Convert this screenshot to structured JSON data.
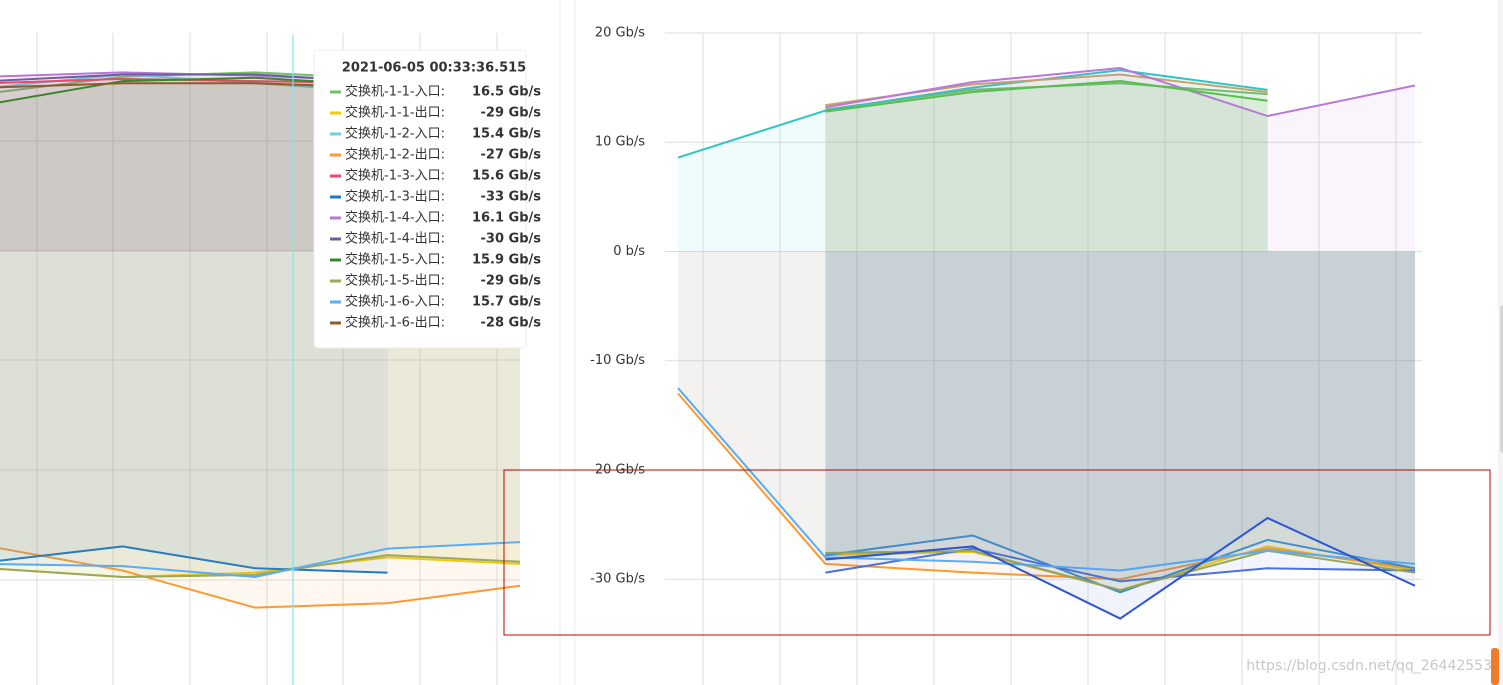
{
  "chart_data": [
    {
      "type": "line",
      "categories": [
        null,
        null,
        null,
        null,
        null
      ],
      "ylim": [
        -39.5,
        20
      ],
      "series": [
        {
          "name": "交换机-1-1-入口:",
          "color": "#73bf69",
          "values": [
            14.5,
            16.0,
            16.4,
            15.8,
            null
          ]
        },
        {
          "name": "交换机-1-1-出口:",
          "color": "#f2cc0c",
          "values": [
            -29.0,
            -29.8,
            -29.4,
            -28.0,
            -28.6
          ]
        },
        {
          "name": "交换机-1-2-入口:",
          "color": "#6ed0e0",
          "values": [
            15.0,
            16.2,
            15.4,
            14.6,
            null
          ]
        },
        {
          "name": "交换机-1-2-出口:",
          "color": "#ff9830",
          "values": [
            -27.0,
            -29.2,
            -32.6,
            -32.2,
            -30.6
          ]
        },
        {
          "name": "交换机-1-3-入口:",
          "color": "#f2495c",
          "values": [
            15.4,
            15.8,
            15.6,
            15.4,
            null
          ]
        },
        {
          "name": "交换机-1-3-出口:",
          "color": "#1f78c1",
          "values": [
            -28.4,
            -27.0,
            -29.0,
            -29.4,
            null
          ]
        },
        {
          "name": "交换机-1-4-入口:",
          "color": "#b877d9",
          "values": [
            16.0,
            16.4,
            16.1,
            15.6,
            null
          ]
        },
        {
          "name": "交换机-1-4-出口:",
          "color": "#705da0",
          "values": [
            15.6,
            16.2,
            16.2,
            15.5,
            null
          ]
        },
        {
          "name": "交换机-1-5-入口:",
          "color": "#37872d",
          "values": [
            13.5,
            15.6,
            15.9,
            15.2,
            null
          ]
        },
        {
          "name": "交换机-1-5-出口:",
          "color": "#9aa85a",
          "values": [
            -29.0,
            -29.8,
            -29.6,
            -27.8,
            -28.4
          ]
        },
        {
          "name": "交换机-1-6-入口:",
          "color": "#5aacf5",
          "values": [
            -28.6,
            -28.8,
            -29.8,
            -27.2,
            -26.6
          ]
        },
        {
          "name": "交换机-1-6-出口:",
          "color": "#8f5a2a",
          "values": [
            15.0,
            15.4,
            15.4,
            15.0,
            null
          ]
        }
      ],
      "tooltip": {
        "title": "2021-06-05 00:33:36.515",
        "values": [
          16.5,
          -29,
          15.4,
          -27,
          15.6,
          -33,
          16.1,
          -30,
          15.9,
          -29,
          15.7,
          -28
        ],
        "value_labels": [
          "16.5 Gb/s",
          "-29 Gb/s",
          "15.4 Gb/s",
          "-27 Gb/s",
          "15.6 Gb/s",
          "-33 Gb/s",
          "16.1 Gb/s",
          "-30 Gb/s",
          "15.9 Gb/s",
          "-29 Gb/s",
          "15.7 Gb/s",
          "-28 Gb/s"
        ]
      }
    },
    {
      "type": "line",
      "categories": [
        null,
        null,
        null,
        null,
        null,
        null
      ],
      "ylim": [
        -39.5,
        20
      ],
      "yticks": [
        {
          "value": 20,
          "label": "20 Gb/s"
        },
        {
          "value": 10,
          "label": "10 Gb/s"
        },
        {
          "value": 0,
          "label": "0 b/s"
        },
        {
          "value": -10,
          "label": "-10 Gb/s"
        },
        {
          "value": -20,
          "label": "-20 Gb/s"
        },
        {
          "value": -30,
          "label": "-30 Gb/s"
        }
      ],
      "series": [
        {
          "name": "交换机-1-1-入口",
          "color": "#73bf69",
          "values": [
            null,
            13.0,
            14.8,
            15.4,
            14.4,
            null
          ]
        },
        {
          "name": "交换机-1-1-出口",
          "color": "#f2cc0c",
          "values": [
            null,
            -27.8,
            -27.5,
            -31.0,
            -27.0,
            -29.2
          ]
        },
        {
          "name": "交换机-1-2-入口",
          "color": "#2fc5c5",
          "values": [
            8.6,
            12.9,
            15.0,
            16.6,
            14.8,
            null
          ]
        },
        {
          "name": "交换机-1-2-出口",
          "color": "#ff9830",
          "values": [
            -13.0,
            -28.6,
            -29.4,
            -30.0,
            -27.2,
            -29.0
          ]
        },
        {
          "name": "交换机-1-3-入口",
          "color": "#c4a56a",
          "values": [
            null,
            13.4,
            15.3,
            16.2,
            14.6,
            null
          ]
        },
        {
          "name": "交换机-1-3-出口",
          "color": "#3d8fd0",
          "values": [
            null,
            -27.8,
            -26.0,
            -31.2,
            -26.4,
            -29.0
          ]
        },
        {
          "name": "交换机-1-4-入口",
          "color": "#b877d9",
          "values": [
            null,
            13.2,
            15.5,
            16.8,
            12.4,
            15.2
          ]
        },
        {
          "name": "交换机-1-4-出口",
          "color": "#4a6fe0",
          "values": [
            null,
            -29.4,
            -27.2,
            -30.2,
            -29.0,
            -29.2
          ]
        },
        {
          "name": "交换机-1-5-入口",
          "color": "#56c04a",
          "values": [
            null,
            12.8,
            14.6,
            15.6,
            13.8,
            null
          ]
        },
        {
          "name": "交换机-1-5-出口",
          "color": "#9aa85a",
          "values": [
            null,
            -27.6,
            -27.4,
            -31.0,
            -27.4,
            -29.4
          ]
        },
        {
          "name": "交换机-1-6-入口",
          "color": "#5aacf5",
          "values": [
            -12.5,
            -28.0,
            -28.4,
            -29.2,
            -27.4,
            -28.6
          ]
        },
        {
          "name": "交换机-1-6-出口",
          "color": "#2f55d4",
          "values": [
            null,
            -28.2,
            -27.0,
            -33.6,
            -24.4,
            -30.6
          ]
        }
      ]
    }
  ],
  "watermark": "https://blog.csdn.net/qq_26442553"
}
